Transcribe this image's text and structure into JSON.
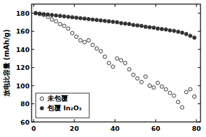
{
  "chart_data": {
    "type": "scatter",
    "y_label": "放电比容量 (mAh/g)",
    "x": [
      1,
      3,
      5,
      7,
      9,
      11,
      13,
      15,
      17,
      19,
      21,
      23,
      25,
      27,
      29,
      31,
      33,
      35,
      37,
      39,
      41,
      43,
      45,
      47,
      49,
      51,
      53,
      55,
      57,
      59,
      61,
      63,
      65,
      67,
      69,
      71,
      73,
      75,
      77,
      79
    ],
    "series": [
      {
        "name": "未包覆",
        "color": "#000000",
        "marker": "circle-open",
        "values": [
          180,
          179,
          178,
          176,
          173,
          171,
          168,
          166,
          163,
          158,
          154,
          150,
          148,
          150,
          145,
          141,
          138,
          132,
          125,
          121,
          130,
          128,
          125,
          118,
          112,
          108,
          104,
          110,
          100,
          98,
          103,
          99,
          96,
          92,
          89,
          82,
          76,
          93,
          96,
          88
        ]
      },
      {
        "name": "包覆 In₂O₃",
        "color": "#333333",
        "marker": "circle",
        "values": [
          180,
          179.5,
          179,
          178.5,
          178,
          177.5,
          177,
          176.5,
          176,
          175.5,
          175,
          174.5,
          174,
          173.5,
          173,
          172.5,
          172,
          171.5,
          171,
          170.5,
          170,
          169,
          168.5,
          168,
          167,
          166.5,
          166,
          165,
          164.5,
          164,
          163,
          162.5,
          162,
          161,
          160.5,
          159.5,
          158.5,
          157,
          155,
          153
        ]
      }
    ],
    "xlim": [
      -1,
      82
    ],
    "xticks": [
      0,
      20,
      40,
      60,
      80
    ],
    "ylim": [
      60,
      190
    ],
    "yticks": [
      60,
      80,
      100,
      120,
      140,
      160,
      180
    ],
    "grid": false,
    "legend": "lower left"
  }
}
